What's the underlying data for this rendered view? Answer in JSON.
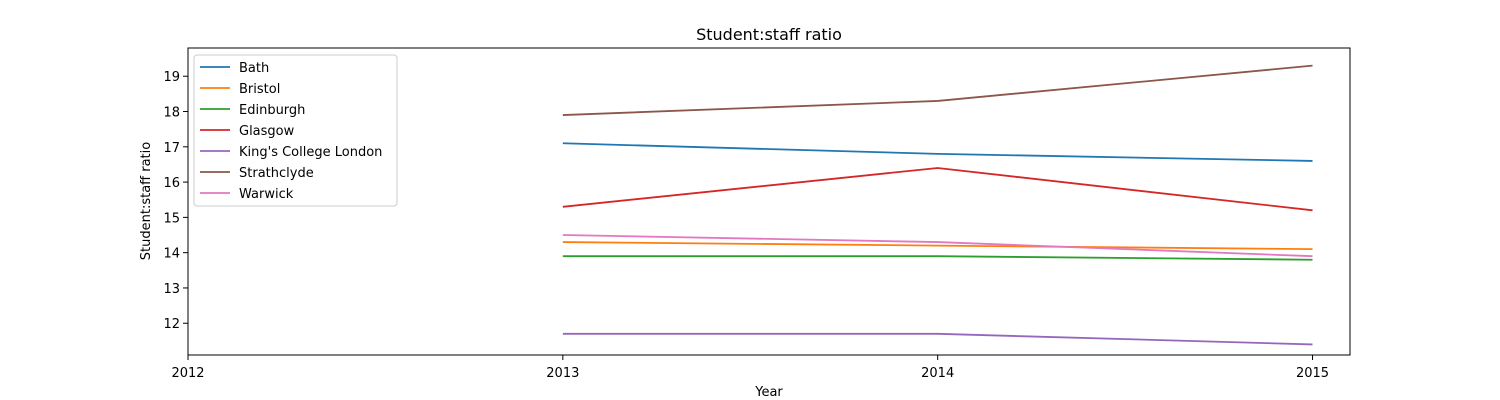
{
  "chart_data": {
    "type": "line",
    "title": "Student:staff ratio",
    "xlabel": "Year",
    "ylabel": "Student:staff ratio",
    "xlim": [
      2012,
      2015.1
    ],
    "ylim": [
      11.1,
      19.8
    ],
    "xticks": [
      2012,
      2013,
      2014,
      2015
    ],
    "yticks": [
      12,
      13,
      14,
      15,
      16,
      17,
      18,
      19
    ],
    "grid": false,
    "legend_position": "top-left",
    "x": [
      2013,
      2014,
      2015
    ],
    "series": [
      {
        "name": "Bath",
        "color": "#1f77b4",
        "values": [
          17.1,
          16.8,
          16.6
        ]
      },
      {
        "name": "Bristol",
        "color": "#ff7f0e",
        "values": [
          14.3,
          14.2,
          14.1
        ]
      },
      {
        "name": "Edinburgh",
        "color": "#2ca02c",
        "values": [
          13.9,
          13.9,
          13.8
        ]
      },
      {
        "name": "Glasgow",
        "color": "#d62728",
        "values": [
          15.3,
          16.4,
          15.2
        ]
      },
      {
        "name": "King's College London",
        "color": "#9467bd",
        "values": [
          11.7,
          11.7,
          11.4
        ]
      },
      {
        "name": "Strathclyde",
        "color": "#8c564b",
        "values": [
          17.9,
          18.3,
          19.3
        ]
      },
      {
        "name": "Warwick",
        "color": "#e377c2",
        "values": [
          14.5,
          14.3,
          13.9
        ]
      }
    ]
  }
}
